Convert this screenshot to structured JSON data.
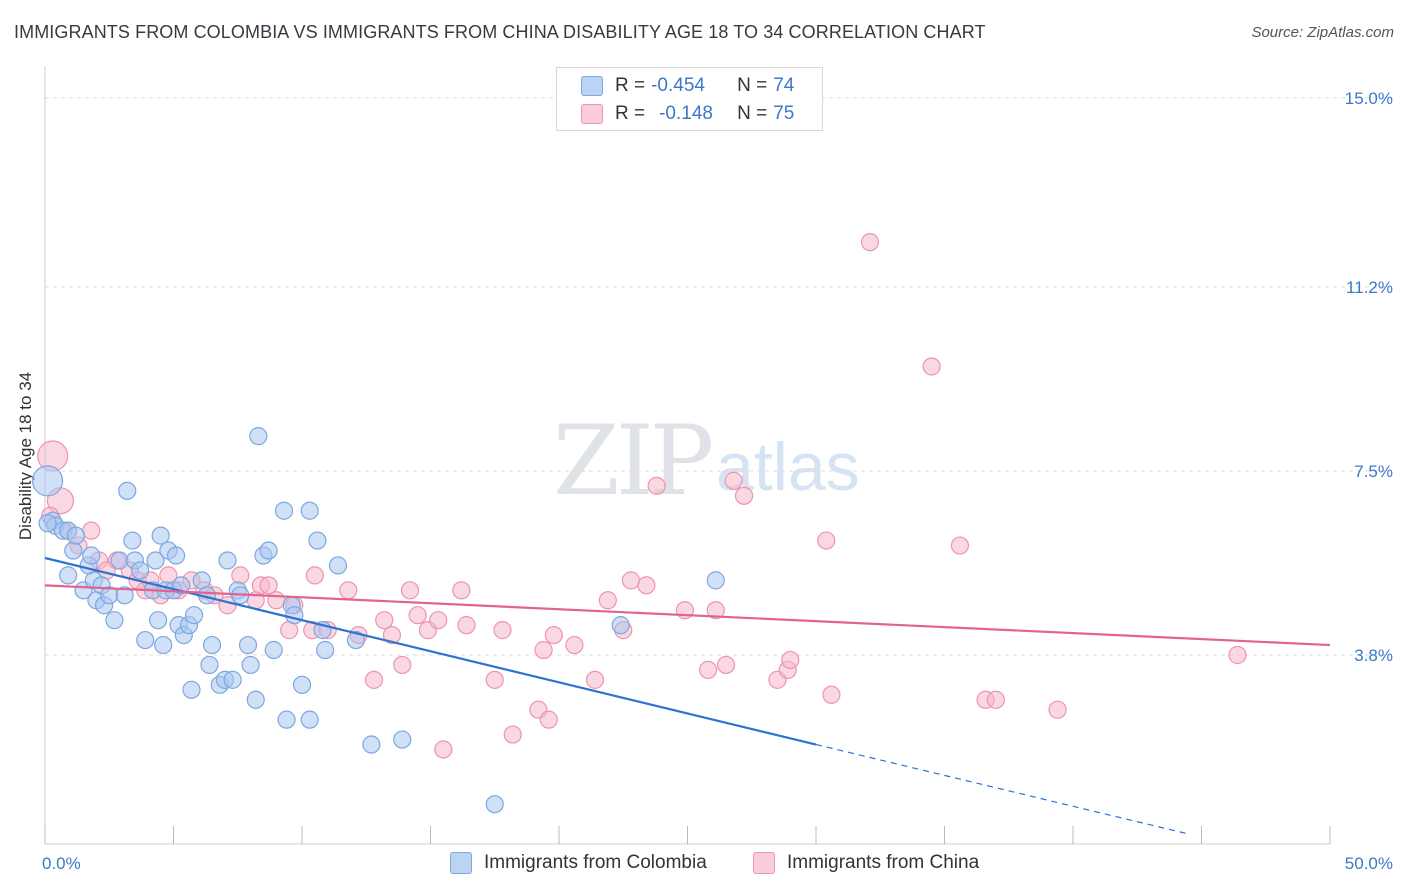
{
  "title": "IMMIGRANTS FROM COLOMBIA VS IMMIGRANTS FROM CHINA DISABILITY AGE 18 TO 34 CORRELATION CHART",
  "source": "Source: ZipAtlas.com",
  "watermark": {
    "zip": "ZIP",
    "atlas": "atlas"
  },
  "legend": {
    "rows": [
      {
        "r_label": "R =",
        "r_value": "-0.454",
        "n_label": "N =",
        "n_value": "74"
      },
      {
        "r_label": "R =",
        "r_value": "-0.148",
        "n_label": "N =",
        "n_value": "75"
      }
    ]
  },
  "bottom_legend": [
    "Immigrants from Colombia",
    "Immigrants from China"
  ],
  "colors": {
    "colombia_fill": "#a9c6f0",
    "colombia_stroke": "#7da7e0",
    "colombia_line": "#2e72d2",
    "china_fill": "#f6b8cb",
    "china_stroke": "#ee93b0",
    "china_line": "#e0648f",
    "tick_text": "#3c78c8",
    "grid": "#dddddd"
  },
  "chart_data": {
    "type": "scatter",
    "title": "IMMIGRANTS FROM COLOMBIA VS IMMIGRANTS FROM CHINA DISABILITY AGE 18 TO 34 CORRELATION CHART",
    "xlabel": "",
    "ylabel": "Disability Age 18 to 34",
    "xlim": [
      0,
      50
    ],
    "ylim": [
      0,
      15.4
    ],
    "x_tick_labels": [
      "0.0%",
      "50.0%"
    ],
    "y_ticks": [
      3.8,
      7.5,
      11.2,
      15.0
    ],
    "y_tick_labels": [
      "3.8%",
      "7.5%",
      "11.2%",
      "15.0%"
    ],
    "grid": true,
    "legend_position": "top-center",
    "series": [
      {
        "name": "Immigrants from Colombia",
        "R": -0.454,
        "N": 74,
        "trend": {
          "x": [
            0,
            30
          ],
          "y": [
            5.75,
            2.0
          ],
          "dashed_to": [
            44.5,
            0.2
          ]
        },
        "points": [
          [
            0.1,
            7.3
          ],
          [
            0.3,
            6.5
          ],
          [
            0.4,
            6.4
          ],
          [
            0.7,
            6.3
          ],
          [
            0.9,
            6.3
          ],
          [
            0.9,
            5.4
          ],
          [
            1.1,
            5.9
          ],
          [
            1.2,
            6.2
          ],
          [
            1.5,
            5.1
          ],
          [
            1.7,
            5.6
          ],
          [
            1.8,
            5.8
          ],
          [
            1.9,
            5.3
          ],
          [
            2.0,
            4.9
          ],
          [
            2.2,
            5.2
          ],
          [
            2.3,
            4.8
          ],
          [
            2.5,
            5.0
          ],
          [
            2.7,
            4.5
          ],
          [
            2.9,
            5.7
          ],
          [
            3.1,
            5.0
          ],
          [
            3.2,
            7.1
          ],
          [
            3.4,
            6.1
          ],
          [
            3.5,
            5.7
          ],
          [
            3.7,
            5.5
          ],
          [
            3.9,
            4.1
          ],
          [
            4.2,
            5.1
          ],
          [
            4.3,
            5.7
          ],
          [
            4.4,
            4.5
          ],
          [
            4.5,
            6.2
          ],
          [
            4.6,
            4.0
          ],
          [
            4.7,
            5.1
          ],
          [
            4.8,
            5.9
          ],
          [
            5.0,
            5.1
          ],
          [
            5.1,
            5.8
          ],
          [
            5.2,
            4.4
          ],
          [
            5.3,
            5.2
          ],
          [
            5.4,
            4.2
          ],
          [
            5.6,
            4.4
          ],
          [
            5.7,
            3.1
          ],
          [
            5.8,
            4.6
          ],
          [
            6.1,
            5.3
          ],
          [
            6.3,
            5.0
          ],
          [
            6.4,
            3.6
          ],
          [
            6.5,
            4.0
          ],
          [
            6.8,
            3.2
          ],
          [
            7.0,
            3.3
          ],
          [
            7.1,
            5.7
          ],
          [
            7.3,
            3.3
          ],
          [
            7.5,
            5.1
          ],
          [
            7.6,
            5.0
          ],
          [
            7.9,
            4.0
          ],
          [
            8.0,
            3.6
          ],
          [
            8.2,
            2.9
          ],
          [
            8.3,
            8.2
          ],
          [
            8.5,
            5.8
          ],
          [
            8.7,
            5.9
          ],
          [
            8.9,
            3.9
          ],
          [
            9.3,
            6.7
          ],
          [
            9.4,
            2.5
          ],
          [
            9.6,
            4.8
          ],
          [
            9.7,
            4.6
          ],
          [
            10.0,
            3.2
          ],
          [
            10.3,
            2.5
          ],
          [
            10.3,
            6.7
          ],
          [
            10.6,
            6.1
          ],
          [
            10.8,
            4.3
          ],
          [
            10.9,
            3.9
          ],
          [
            11.4,
            5.6
          ],
          [
            12.1,
            4.1
          ],
          [
            12.7,
            2.0
          ],
          [
            13.9,
            2.1
          ],
          [
            17.5,
            0.8
          ],
          [
            22.4,
            4.4
          ],
          [
            26.1,
            5.3
          ],
          [
            0.1,
            6.45
          ]
        ]
      },
      {
        "name": "Immigrants from China",
        "R": -0.148,
        "N": 75,
        "trend": {
          "x": [
            0,
            50
          ],
          "y": [
            5.2,
            4.0
          ]
        },
        "points": [
          [
            0.3,
            7.8
          ],
          [
            0.6,
            6.9
          ],
          [
            0.9,
            6.3
          ],
          [
            1.3,
            6.0
          ],
          [
            1.8,
            6.3
          ],
          [
            2.1,
            5.7
          ],
          [
            2.4,
            5.5
          ],
          [
            2.8,
            5.7
          ],
          [
            3.3,
            5.5
          ],
          [
            3.6,
            5.3
          ],
          [
            3.9,
            5.1
          ],
          [
            4.1,
            5.3
          ],
          [
            4.5,
            5.0
          ],
          [
            4.8,
            5.4
          ],
          [
            5.2,
            5.1
          ],
          [
            5.7,
            5.3
          ],
          [
            6.2,
            5.1
          ],
          [
            6.6,
            5.0
          ],
          [
            7.1,
            4.8
          ],
          [
            7.6,
            5.4
          ],
          [
            8.2,
            4.9
          ],
          [
            8.4,
            5.2
          ],
          [
            8.7,
            5.2
          ],
          [
            9.0,
            4.9
          ],
          [
            9.5,
            4.3
          ],
          [
            9.7,
            4.8
          ],
          [
            10.4,
            4.3
          ],
          [
            10.5,
            5.4
          ],
          [
            11.0,
            4.3
          ],
          [
            11.8,
            5.1
          ],
          [
            12.2,
            4.2
          ],
          [
            12.8,
            3.3
          ],
          [
            13.2,
            4.5
          ],
          [
            13.5,
            4.2
          ],
          [
            13.9,
            3.6
          ],
          [
            14.2,
            5.1
          ],
          [
            14.5,
            4.6
          ],
          [
            14.9,
            4.3
          ],
          [
            15.3,
            4.5
          ],
          [
            15.5,
            1.9
          ],
          [
            16.2,
            5.1
          ],
          [
            16.4,
            4.4
          ],
          [
            17.5,
            3.3
          ],
          [
            17.8,
            4.3
          ],
          [
            18.2,
            2.2
          ],
          [
            19.2,
            2.7
          ],
          [
            19.4,
            3.9
          ],
          [
            19.6,
            2.5
          ],
          [
            19.8,
            4.2
          ],
          [
            20.6,
            4.0
          ],
          [
            21.4,
            3.3
          ],
          [
            21.9,
            4.9
          ],
          [
            22.5,
            4.3
          ],
          [
            22.8,
            5.3
          ],
          [
            23.4,
            5.2
          ],
          [
            23.8,
            7.2
          ],
          [
            24.9,
            4.7
          ],
          [
            25.8,
            3.5
          ],
          [
            26.1,
            4.7
          ],
          [
            26.5,
            3.6
          ],
          [
            26.8,
            7.3
          ],
          [
            27.2,
            7.0
          ],
          [
            28.5,
            3.3
          ],
          [
            28.9,
            3.5
          ],
          [
            29.0,
            3.7
          ],
          [
            30.4,
            6.1
          ],
          [
            30.6,
            3.0
          ],
          [
            32.1,
            12.1
          ],
          [
            34.5,
            9.6
          ],
          [
            35.6,
            6.0
          ],
          [
            36.6,
            2.9
          ],
          [
            37.0,
            2.9
          ],
          [
            39.4,
            2.7
          ],
          [
            46.4,
            3.8
          ],
          [
            0.2,
            6.6
          ]
        ]
      }
    ]
  }
}
